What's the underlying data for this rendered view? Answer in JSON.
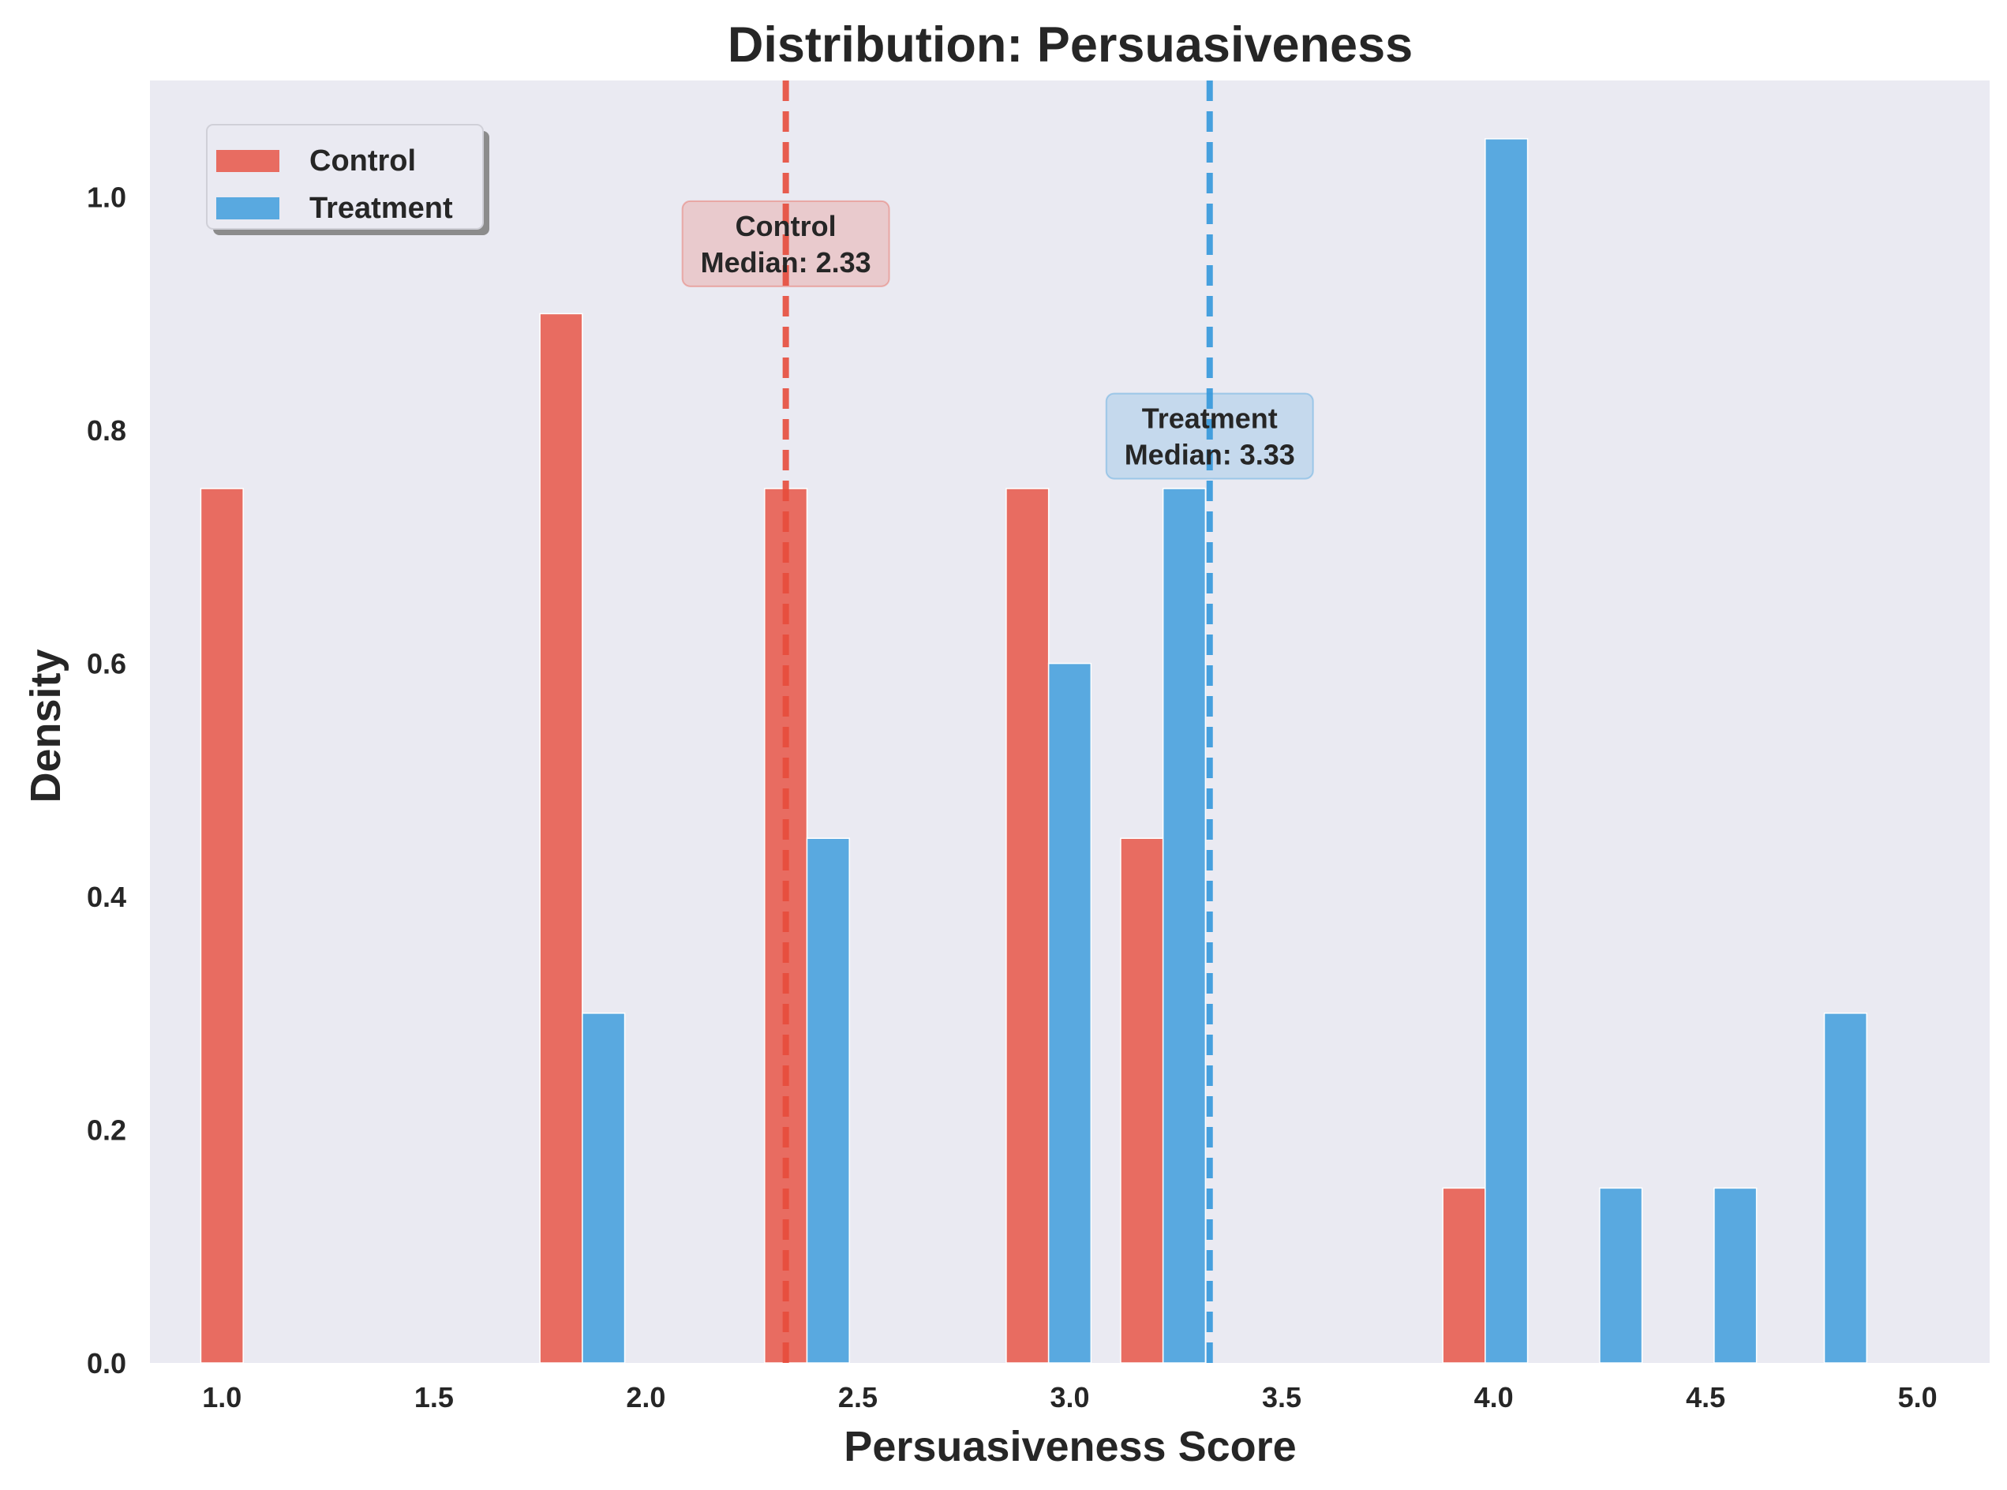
{
  "chart_data": {
    "type": "bar",
    "title": "Distribution: Persuasiveness",
    "xlabel": "Persuasiveness Score",
    "ylabel": "Density",
    "xlim": [
      0.83,
      5.17
    ],
    "ylim": [
      0,
      1.1
    ],
    "xticks": [
      "1.0",
      "1.5",
      "2.0",
      "2.5",
      "3.0",
      "3.5",
      "4.0",
      "4.5",
      "5.0"
    ],
    "yticks": [
      "0.0",
      "0.2",
      "0.4",
      "0.6",
      "0.8",
      "1.0"
    ],
    "grid": false,
    "legend_position": "top-left",
    "bar_width": 0.1,
    "series": [
      {
        "name": "Control",
        "color": "#e74c3c",
        "bars": [
          {
            "x": 1.0,
            "value": 0.75
          },
          {
            "x": 1.8,
            "value": 0.9
          },
          {
            "x": 2.33,
            "value": 0.75
          },
          {
            "x": 2.9,
            "value": 0.75
          },
          {
            "x": 3.17,
            "value": 0.45
          },
          {
            "x": 3.93,
            "value": 0.15
          }
        ]
      },
      {
        "name": "Treatment",
        "color": "#3498db",
        "bars": [
          {
            "x": 1.9,
            "value": 0.3
          },
          {
            "x": 2.43,
            "value": 0.45
          },
          {
            "x": 3.0,
            "value": 0.6
          },
          {
            "x": 3.27,
            "value": 0.75
          },
          {
            "x": 4.03,
            "value": 1.05
          },
          {
            "x": 4.3,
            "value": 0.15
          },
          {
            "x": 4.57,
            "value": 0.15
          },
          {
            "x": 4.83,
            "value": 0.3
          }
        ]
      }
    ],
    "median_lines": [
      {
        "series": "Control",
        "value": 2.33,
        "color": "#e74c3c",
        "label_line1": "Control",
        "label_line2": "Median: 2.33",
        "label_y": 0.96
      },
      {
        "series": "Treatment",
        "value": 3.33,
        "color": "#3498db",
        "label_line1": "Treatment",
        "label_line2": "Median: 3.33",
        "label_y": 0.795
      }
    ],
    "colors": {
      "plot_bg": "#eaeaf2",
      "control": "#e74c3c",
      "treatment": "#3498db"
    }
  }
}
